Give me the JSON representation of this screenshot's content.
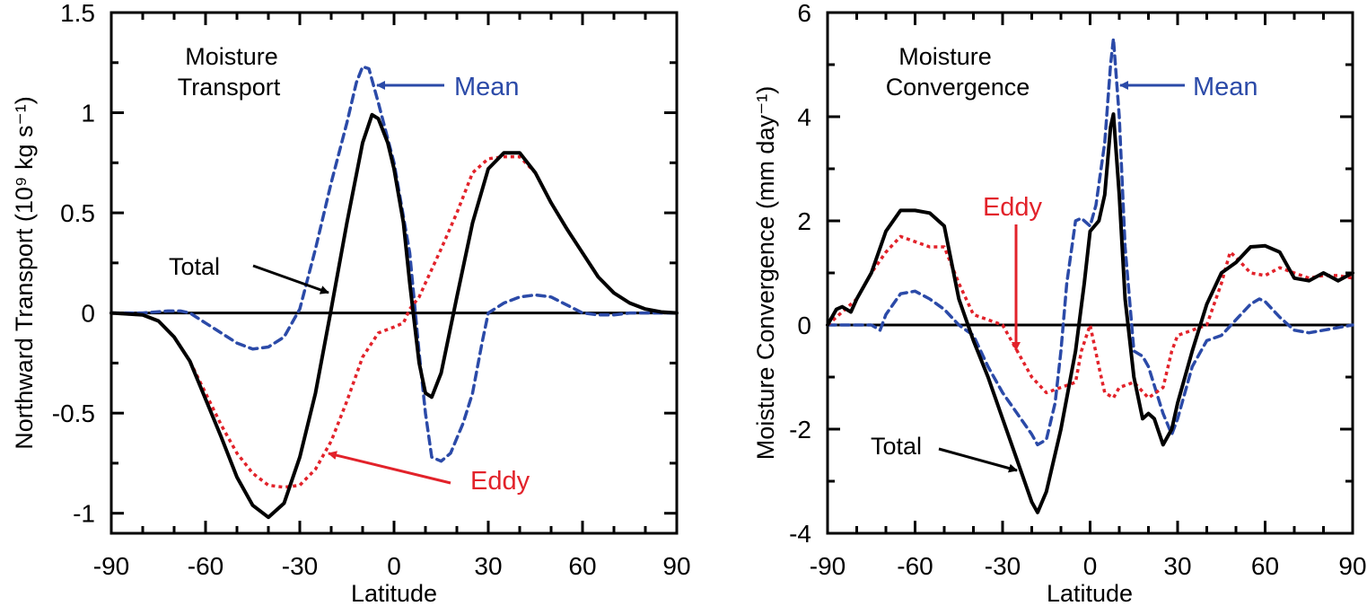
{
  "chart_data": [
    {
      "type": "line",
      "title": "Moisture Transport",
      "title_lines": [
        "Moisture",
        "Transport"
      ],
      "xlabel": "Latitude",
      "ylabel": "Northward Transport (10⁹ kg s⁻¹)",
      "xlim": [
        -90,
        90
      ],
      "ylim": [
        -1.1,
        1.5
      ],
      "xticks": [
        -90,
        -60,
        -30,
        0,
        30,
        60,
        90
      ],
      "xtick_labels": [
        "-90",
        "-60",
        "-30",
        "0",
        "30",
        "60",
        "90"
      ],
      "yticks": [
        -1,
        -0.5,
        0,
        0.5,
        1,
        1.5
      ],
      "ytick_labels": [
        "-1",
        "-0.5",
        "0",
        "0.5",
        "1",
        "1.5"
      ],
      "zero_line": true,
      "grid": false,
      "annotations": [
        {
          "text": "Mean",
          "color": "#2b4aa8"
        },
        {
          "text": "Total",
          "color": "#000000"
        },
        {
          "text": "Eddy",
          "color": "#e2222a"
        }
      ],
      "series": [
        {
          "name": "Total",
          "color": "#000000",
          "style": "solid",
          "x": [
            -90,
            -80,
            -75,
            -70,
            -65,
            -60,
            -55,
            -50,
            -45,
            -40,
            -35,
            -30,
            -25,
            -20,
            -15,
            -10,
            -7,
            -5,
            -2,
            0,
            3,
            5,
            8,
            10,
            12,
            15,
            20,
            25,
            30,
            35,
            40,
            45,
            50,
            55,
            60,
            65,
            70,
            75,
            80,
            85,
            90
          ],
          "y": [
            0,
            -0.01,
            -0.04,
            -0.12,
            -0.24,
            -0.43,
            -0.62,
            -0.82,
            -0.96,
            -1.02,
            -0.95,
            -0.72,
            -0.4,
            0.02,
            0.45,
            0.85,
            0.99,
            0.97,
            0.85,
            0.72,
            0.45,
            0.15,
            -0.25,
            -0.4,
            -0.42,
            -0.3,
            0.08,
            0.45,
            0.72,
            0.8,
            0.8,
            0.7,
            0.55,
            0.42,
            0.3,
            0.18,
            0.1,
            0.05,
            0.02,
            0.005,
            0
          ]
        },
        {
          "name": "Eddy",
          "color": "#e2222a",
          "style": "dotted",
          "x": [
            -90,
            -80,
            -75,
            -70,
            -65,
            -60,
            -55,
            -50,
            -45,
            -40,
            -35,
            -30,
            -25,
            -20,
            -15,
            -10,
            -5,
            0,
            3,
            5,
            8,
            10,
            15,
            20,
            25,
            30,
            35,
            40,
            45,
            50,
            55,
            60,
            65,
            70,
            75,
            80,
            85,
            90
          ],
          "y": [
            0,
            -0.01,
            -0.04,
            -0.12,
            -0.24,
            -0.4,
            -0.56,
            -0.7,
            -0.8,
            -0.86,
            -0.87,
            -0.86,
            -0.78,
            -0.64,
            -0.44,
            -0.22,
            -0.1,
            -0.07,
            -0.05,
            0.02,
            0.08,
            0.15,
            0.32,
            0.5,
            0.7,
            0.77,
            0.78,
            0.78,
            0.7,
            0.55,
            0.42,
            0.3,
            0.18,
            0.1,
            0.05,
            0.02,
            0.005,
            0
          ]
        },
        {
          "name": "Mean",
          "color": "#2b4aa8",
          "style": "dashed",
          "x": [
            -90,
            -80,
            -72,
            -68,
            -65,
            -60,
            -55,
            -50,
            -45,
            -40,
            -35,
            -30,
            -25,
            -20,
            -15,
            -12,
            -10,
            -8,
            -5,
            0,
            5,
            8,
            10,
            12,
            15,
            18,
            22,
            25,
            28,
            30,
            35,
            40,
            45,
            50,
            55,
            60,
            65,
            70,
            75,
            80,
            90
          ],
          "y": [
            0,
            0,
            0.01,
            0.01,
            0,
            -0.05,
            -0.1,
            -0.15,
            -0.18,
            -0.17,
            -0.12,
            0.02,
            0.32,
            0.65,
            0.95,
            1.15,
            1.23,
            1.22,
            1.05,
            0.75,
            0.3,
            -0.2,
            -0.5,
            -0.72,
            -0.74,
            -0.7,
            -0.55,
            -0.4,
            -0.15,
            0.0,
            0.05,
            0.08,
            0.09,
            0.08,
            0.04,
            0.0,
            -0.01,
            -0.01,
            0,
            0,
            0
          ]
        }
      ]
    },
    {
      "type": "line",
      "title": "Moisture Convergence",
      "title_lines": [
        "Moisture",
        "Convergence"
      ],
      "xlabel": "Latitude",
      "ylabel": "Moisture Convergence (mm day⁻¹)",
      "xlim": [
        -90,
        90
      ],
      "ylim": [
        -4,
        6
      ],
      "xticks": [
        -90,
        -60,
        -30,
        0,
        30,
        60,
        90
      ],
      "xtick_labels": [
        "-90",
        "-60",
        "-30",
        "0",
        "30",
        "60",
        "90"
      ],
      "yticks": [
        -4,
        -2,
        0,
        2,
        4,
        6
      ],
      "ytick_labels": [
        "-4",
        "-2",
        "0",
        "2",
        "4",
        "6"
      ],
      "zero_line": true,
      "grid": false,
      "annotations": [
        {
          "text": "Mean",
          "color": "#2b4aa8"
        },
        {
          "text": "Eddy",
          "color": "#e2222a"
        },
        {
          "text": "Total",
          "color": "#000000"
        }
      ],
      "series": [
        {
          "name": "Total",
          "color": "#000000",
          "style": "solid",
          "x": [
            -90,
            -87,
            -85,
            -82,
            -80,
            -75,
            -70,
            -65,
            -60,
            -55,
            -50,
            -45,
            -40,
            -35,
            -30,
            -25,
            -20,
            -18,
            -15,
            -10,
            -5,
            -2,
            0,
            3,
            5,
            7,
            8,
            10,
            12,
            15,
            18,
            20,
            22,
            25,
            28,
            30,
            35,
            40,
            45,
            50,
            55,
            60,
            65,
            70,
            75,
            80,
            85,
            90
          ],
          "y": [
            0,
            0.3,
            0.35,
            0.25,
            0.5,
            1,
            1.8,
            2.2,
            2.2,
            2.15,
            1.9,
            0.5,
            -0.3,
            -1,
            -1.8,
            -2.6,
            -3.4,
            -3.6,
            -3.2,
            -2,
            -0.5,
            0.8,
            1.8,
            2,
            2.5,
            3.8,
            4.05,
            2.5,
            0.5,
            -1,
            -1.8,
            -1.7,
            -1.8,
            -2.3,
            -2,
            -1.5,
            -0.5,
            0.4,
            1,
            1.2,
            1.5,
            1.52,
            1.4,
            0.9,
            0.85,
            1,
            0.85,
            1
          ]
        },
        {
          "name": "Eddy",
          "color": "#e2222a",
          "style": "dotted",
          "x": [
            -90,
            -85,
            -80,
            -75,
            -70,
            -65,
            -60,
            -55,
            -50,
            -45,
            -40,
            -35,
            -30,
            -25,
            -20,
            -15,
            -10,
            -5,
            -3,
            0,
            3,
            5,
            8,
            10,
            15,
            20,
            25,
            28,
            30,
            35,
            40,
            45,
            48,
            50,
            55,
            60,
            65,
            70,
            75,
            80,
            85,
            90
          ],
          "y": [
            0,
            0.25,
            0.5,
            1,
            1.4,
            1.7,
            1.6,
            1.5,
            1.5,
            0.8,
            0.2,
            0.1,
            0,
            -0.5,
            -1,
            -1.3,
            -1.2,
            -1.1,
            -0.5,
            0,
            -0.8,
            -1.3,
            -1.4,
            -1.2,
            -1.1,
            -1.4,
            -1.2,
            -0.5,
            -0.2,
            -0.1,
            0,
            0.8,
            1.4,
            1.3,
            1,
            0.95,
            1.1,
            1,
            0.9,
            0.95,
            0.95,
            0.9
          ]
        },
        {
          "name": "Mean",
          "color": "#2b4aa8",
          "style": "dashed",
          "x": [
            -90,
            -85,
            -80,
            -75,
            -72,
            -70,
            -65,
            -60,
            -55,
            -50,
            -45,
            -40,
            -35,
            -30,
            -25,
            -20,
            -18,
            -15,
            -12,
            -10,
            -8,
            -5,
            -3,
            0,
            2,
            5,
            7,
            8,
            10,
            12,
            15,
            18,
            20,
            25,
            28,
            30,
            35,
            40,
            45,
            50,
            55,
            58,
            60,
            65,
            70,
            75,
            80,
            90
          ],
          "y": [
            0,
            0,
            0,
            0,
            -0.1,
            0.2,
            0.6,
            0.65,
            0.5,
            0.3,
            0,
            -0.2,
            -0.8,
            -1.3,
            -1.7,
            -2.1,
            -2.3,
            -2.2,
            -1.5,
            -0.5,
            0.8,
            2,
            2.05,
            1.9,
            2.3,
            3.5,
            5,
            5.5,
            4,
            1.5,
            -0.5,
            -0.6,
            -0.8,
            -1.7,
            -2.1,
            -1.8,
            -0.8,
            -0.3,
            -0.2,
            0.1,
            0.4,
            0.5,
            0.45,
            0.15,
            -0.1,
            -0.15,
            -0.1,
            0
          ]
        }
      ]
    }
  ]
}
